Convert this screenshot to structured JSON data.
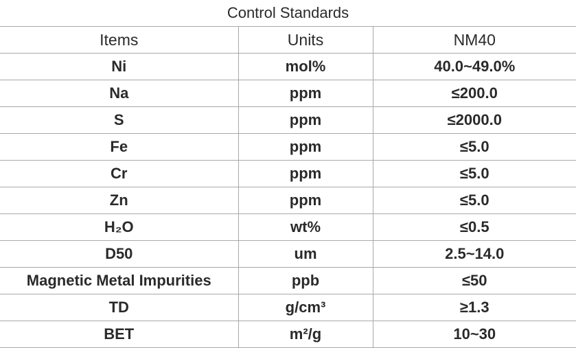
{
  "table": {
    "title": "Control Standards",
    "header": [
      "Items",
      "Units",
      "NM40"
    ],
    "rows": [
      [
        "Ni",
        "mol%",
        "40.0~49.0%"
      ],
      [
        "Na",
        "ppm",
        "≤200.0"
      ],
      [
        "S",
        "ppm",
        "≤2000.0"
      ],
      [
        "Fe",
        "ppm",
        "≤5.0"
      ],
      [
        "Cr",
        "ppm",
        "≤5.0"
      ],
      [
        "Zn",
        "ppm",
        "≤5.0"
      ],
      [
        "H₂O",
        "wt%",
        "≤0.5"
      ],
      [
        "D50",
        "um",
        "2.5~14.0"
      ],
      [
        "Magnetic Metal Impurities",
        "ppb",
        "≤50"
      ],
      [
        "TD",
        "g/cm³",
        "≥1.3"
      ],
      [
        "BET",
        "m²/g",
        "10~30"
      ]
    ]
  }
}
